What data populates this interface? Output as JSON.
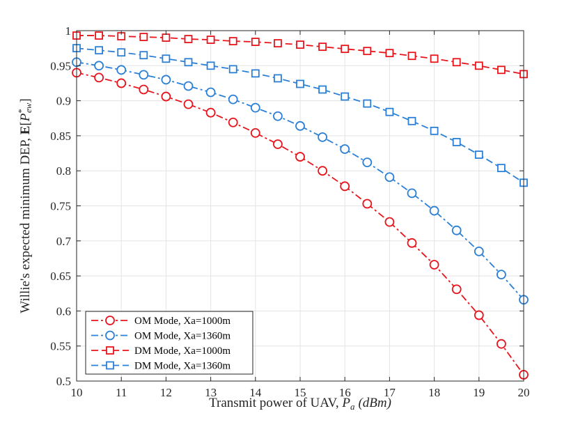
{
  "chart_data": {
    "type": "line",
    "title": "",
    "xlabel": "Transmit power of UAV, P_a (dBm)",
    "xlabel_parts": {
      "main": "Transmit power of UAV, ",
      "sym": "P",
      "sub": "a",
      "unit": "(dBm)"
    },
    "ylabel": "Willie's expected minimum DEP, E[P*_ew]",
    "ylabel_parts": {
      "main": "Willie's expected minimum DEP, ",
      "bold": "E",
      "open": "[",
      "sym": "P",
      "sup": "*",
      "sub": "ew",
      "close": "]"
    },
    "xlim": [
      10,
      20
    ],
    "ylim": [
      0.5,
      1
    ],
    "xticks": [
      10,
      11,
      12,
      13,
      14,
      15,
      16,
      17,
      18,
      19,
      20
    ],
    "xtick_labels": [
      "10",
      "11",
      "12",
      "13",
      "14",
      "15",
      "16",
      "17",
      "18",
      "19",
      "20"
    ],
    "yticks": [
      0.5,
      0.55,
      0.6,
      0.65,
      0.7,
      0.75,
      0.8,
      0.85,
      0.9,
      0.95,
      1
    ],
    "ytick_labels": [
      "0.5",
      "0.55",
      "0.6",
      "0.65",
      "0.7",
      "0.75",
      "0.8",
      "0.85",
      "0.9",
      "0.95",
      "1"
    ],
    "grid": true,
    "legend_position": "bottom-left",
    "x": [
      10,
      10.5,
      11,
      11.5,
      12,
      12.5,
      13,
      13.5,
      14,
      14.5,
      15,
      15.5,
      16,
      16.5,
      17,
      17.5,
      18,
      18.5,
      19,
      19.5,
      20
    ],
    "series": [
      {
        "name": "OM Mode, Xa=1000m",
        "color": "#e8141b",
        "marker": "circle",
        "line": "dashdot",
        "values": [
          0.94,
          0.933,
          0.925,
          0.916,
          0.906,
          0.895,
          0.883,
          0.869,
          0.854,
          0.838,
          0.82,
          0.8,
          0.778,
          0.753,
          0.727,
          0.697,
          0.666,
          0.631,
          0.594,
          0.553,
          0.509
        ]
      },
      {
        "name": "OM Mode, Xa=1360m",
        "color": "#2a7fd6",
        "marker": "circle",
        "line": "dashdot",
        "values": [
          0.955,
          0.95,
          0.944,
          0.937,
          0.93,
          0.921,
          0.912,
          0.902,
          0.89,
          0.878,
          0.864,
          0.848,
          0.831,
          0.812,
          0.791,
          0.768,
          0.743,
          0.715,
          0.685,
          0.652,
          0.616
        ]
      },
      {
        "name": "DM Mode, Xa=1000m",
        "color": "#e8141b",
        "marker": "square",
        "line": "dashed",
        "values": [
          0.993,
          0.993,
          0.992,
          0.991,
          0.99,
          0.988,
          0.987,
          0.985,
          0.984,
          0.982,
          0.98,
          0.977,
          0.974,
          0.971,
          0.968,
          0.964,
          0.96,
          0.955,
          0.95,
          0.944,
          0.938
        ]
      },
      {
        "name": "DM Mode, Xa=1360m",
        "color": "#2a7fd6",
        "marker": "square",
        "line": "dashed",
        "values": [
          0.975,
          0.972,
          0.969,
          0.965,
          0.96,
          0.955,
          0.95,
          0.945,
          0.939,
          0.932,
          0.924,
          0.916,
          0.906,
          0.896,
          0.884,
          0.871,
          0.857,
          0.841,
          0.823,
          0.804,
          0.783
        ]
      }
    ]
  }
}
